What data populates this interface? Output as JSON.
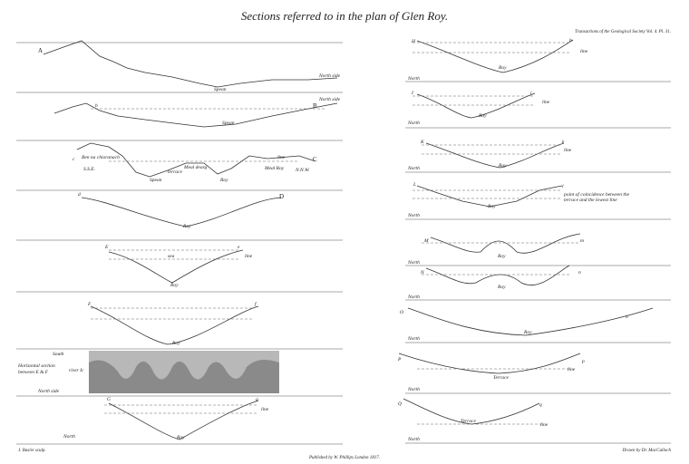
{
  "header": {
    "title": "Sections referred to in the plan of Glen Roy.",
    "plate": "Transactions of the Geological Society Vol. 4. Pl. 31."
  },
  "footer": {
    "left": "J. Basire sculp.",
    "center": "Published by W. Phillips London 1817.",
    "right": "Drawn by Dr. MacCulloch"
  },
  "sections": [
    {
      "labels": [
        "A",
        "North side",
        "Spean"
      ]
    },
    {
      "labels": [
        "North side",
        "b",
        "B",
        "Spean"
      ]
    },
    {
      "labels": [
        "c",
        "Ben na chioranach",
        "S.S.E.",
        "Meal dearg",
        "terrace",
        "Spean",
        "Roy",
        "line",
        "Meal Roy",
        "C",
        "N.N.W."
      ]
    },
    {
      "labels": [
        "d",
        "D",
        "Roy"
      ]
    },
    {
      "labels": [
        "E",
        "e",
        "sea",
        "line",
        "Roy"
      ]
    },
    {
      "labels": [
        "F",
        "f",
        "Roy"
      ]
    },
    {
      "labels": [
        "Horizontal section",
        "between E & F",
        "South",
        "river Ic",
        "North side"
      ]
    },
    {
      "labels": [
        "G",
        "g",
        "line",
        "North",
        "Roy"
      ]
    },
    {
      "labels": [
        "H",
        "h",
        "line",
        "Roy",
        "North"
      ]
    },
    {
      "labels": [
        "I",
        "i",
        "line",
        "Roy",
        "North"
      ]
    },
    {
      "labels": [
        "K",
        "k",
        "line",
        "Roy",
        "North"
      ]
    },
    {
      "labels": [
        "L",
        "l",
        "point of coincidence between the",
        "terrace and the lowest line",
        "Roy",
        "North"
      ]
    },
    {
      "labels": [
        "M",
        "m",
        "Roy",
        "North"
      ]
    },
    {
      "labels": [
        "N",
        "n",
        "Roy",
        "North"
      ]
    },
    {
      "labels": [
        "O",
        "o",
        "Roy",
        "North"
      ]
    },
    {
      "labels": [
        "P",
        "p",
        "Terrace",
        "line",
        "North"
      ]
    },
    {
      "labels": [
        "Q",
        "q",
        "Terrace",
        "line",
        "North"
      ]
    }
  ]
}
